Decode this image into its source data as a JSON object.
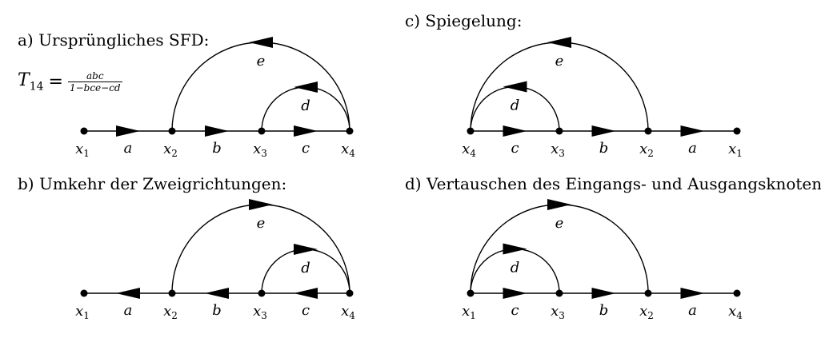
{
  "headings": {
    "a": "a) Ursprüngliches SFD:",
    "b": "b) Umkehr der Zweigrichtungen:",
    "c": "c) Spiegelung:",
    "d": "d) Vertauschen des Eingangs- und Ausgangsknotens:"
  },
  "formula": {
    "lhs": "T",
    "lhs_sub": "14",
    "eq": "=",
    "numerator": "abc",
    "denominator": "1−bce−cd"
  },
  "diagrams": {
    "a": {
      "nodes": [
        {
          "sym": "x",
          "sub": "1"
        },
        {
          "sym": "x",
          "sub": "2"
        },
        {
          "sym": "x",
          "sub": "3"
        },
        {
          "sym": "x",
          "sub": "4"
        }
      ],
      "edges": [
        "a",
        "b",
        "c"
      ],
      "edge_direction": "right",
      "outer_arc_label": "e",
      "inner_arc_label": "d"
    },
    "b": {
      "nodes": [
        {
          "sym": "x",
          "sub": "1"
        },
        {
          "sym": "x",
          "sub": "2"
        },
        {
          "sym": "x",
          "sub": "3"
        },
        {
          "sym": "x",
          "sub": "4"
        }
      ],
      "edges": [
        "a",
        "b",
        "c"
      ],
      "edge_direction": "left",
      "outer_arc_label": "e",
      "inner_arc_label": "d"
    },
    "c": {
      "nodes": [
        {
          "sym": "x",
          "sub": "4"
        },
        {
          "sym": "x",
          "sub": "3"
        },
        {
          "sym": "x",
          "sub": "2"
        },
        {
          "sym": "x",
          "sub": "1"
        }
      ],
      "edges": [
        "c",
        "b",
        "a"
      ],
      "edge_direction": "right",
      "outer_arc_label": "e",
      "inner_arc_label": "d"
    },
    "d": {
      "nodes": [
        {
          "sym": "x",
          "sub": "1"
        },
        {
          "sym": "x",
          "sub": "3"
        },
        {
          "sym": "x",
          "sub": "2"
        },
        {
          "sym": "x",
          "sub": "4"
        }
      ],
      "edges": [
        "c",
        "b",
        "a"
      ],
      "edge_direction": "right",
      "outer_arc_label": "e",
      "inner_arc_label": "d"
    }
  }
}
